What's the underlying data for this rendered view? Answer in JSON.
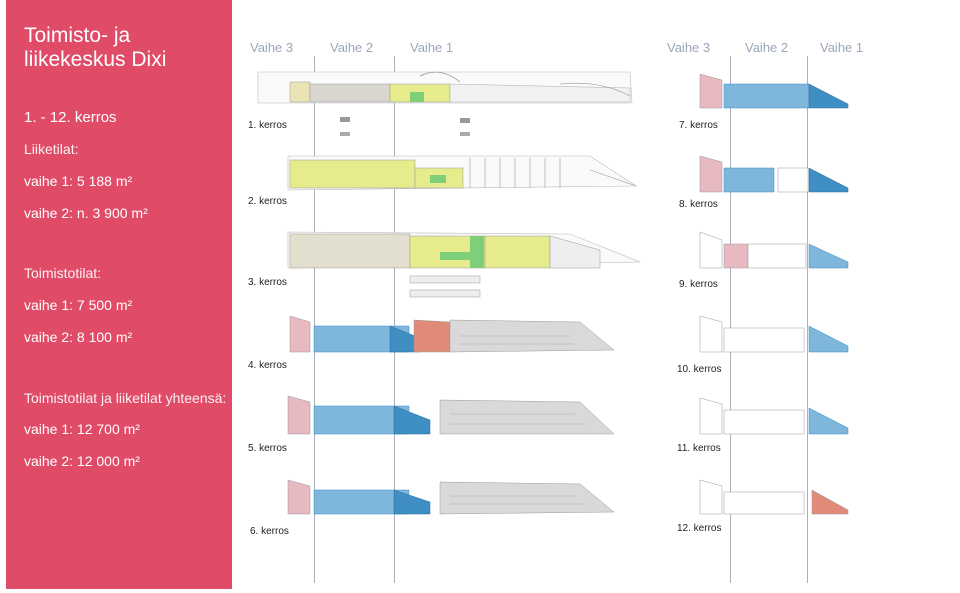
{
  "sidebar": {
    "title": "Toimisto- ja liikekeskus Dixi",
    "floors": "1. - 12. kerros",
    "retail_heading": "Liiketilat:",
    "retail_phase1": "vaihe 1: 5 188 m²",
    "retail_phase2": "vaihe 2: n. 3 900 m²",
    "office_heading": "Toimistotilat:",
    "office_phase1": "vaihe 1: 7 500 m²",
    "office_phase2": "vaihe 2: 8 100 m²",
    "total_heading": "Toimistotilat ja liiketilat yhteensä:",
    "total_phase1": "vaihe 1: 12 700 m²",
    "total_phase2": "vaihe 2: 12 000 m²"
  },
  "phases_left": [
    "Vaihe 3",
    "Vaihe 2",
    "Vaihe 1"
  ],
  "phases_right": [
    "Vaihe 3",
    "Vaihe 2",
    "Vaihe 1"
  ],
  "floors_left": [
    "1. kerros",
    "2. kerros",
    "3. kerros",
    "4. kerros",
    "5. kerros",
    "6. kerros"
  ],
  "floors_right": [
    "7. kerros",
    "8. kerros",
    "9. kerros",
    "10. kerros",
    "11. kerros",
    "12. kerros"
  ],
  "colors": {
    "accent": "#e04b67",
    "retail": "#e6ec8c",
    "retail_green": "#7fcf7a",
    "office": "#7eb6dc",
    "office_dark": "#3f8fc4",
    "pink": "#e8b9c0",
    "salmon": "#e08a78",
    "parking": "#d9d9d9"
  }
}
